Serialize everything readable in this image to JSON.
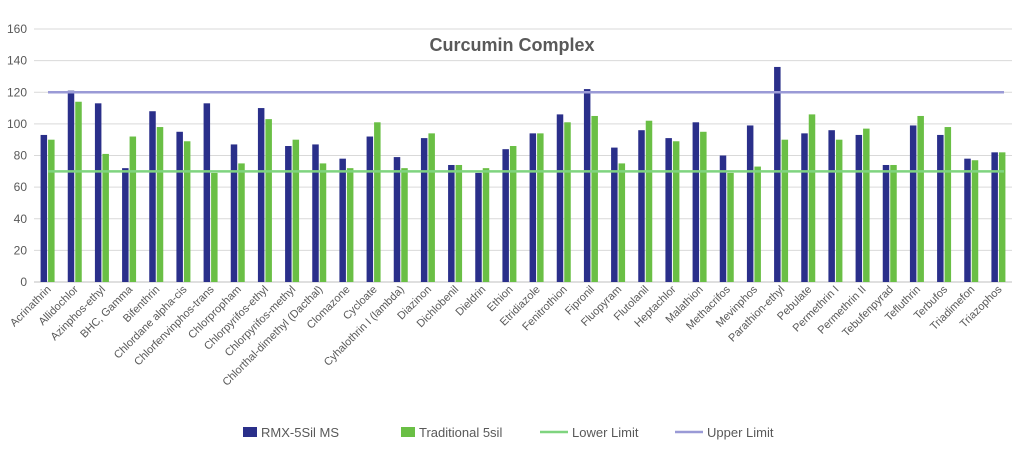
{
  "chart_data": {
    "type": "bar",
    "title": "Curcumin Complex",
    "xlabel": "",
    "ylabel": "",
    "ylim": [
      0,
      160
    ],
    "yticks": [
      0,
      20,
      40,
      60,
      80,
      100,
      120,
      140,
      160
    ],
    "grid": true,
    "legend_position": "bottom",
    "categories": [
      "Acrinathrin",
      "Allidochlor",
      "Azinphos-ethyl",
      "BHC, Gamma",
      "Bifenthrin",
      "Chlordane alpha-cis",
      "Chlorfenvinphos-trans",
      "Chlorpropham",
      "Chlorpyrifos-ethyl",
      "Chlorpyrifos-methyl",
      "Chlorthal-dimethyl (Dacthal)",
      "Clomazone",
      "Cycloate",
      "Cyhalothrin I (lambda)",
      "Diazinon",
      "Dichlobenil",
      "Dieldrin",
      "Ethion",
      "Etridiazole",
      "Fenitrothion",
      "Fipronil",
      "Fluopyram",
      "Flutolanil",
      "Heptachlor",
      "Malathion",
      "Methacrifos",
      "Mevinphos",
      "Parathion-ethyl",
      "Pebulate",
      "Permethrin I",
      "Permethrin II",
      "Tebufenpyrad",
      "Tefluthrin",
      "Terbufos",
      "Triadimefon",
      "Triazophos"
    ],
    "series": [
      {
        "name": "RMX-5Sil MS",
        "color": "#2a2f8a",
        "values": [
          93,
          121,
          113,
          72,
          108,
          95,
          113,
          87,
          110,
          86,
          87,
          78,
          92,
          79,
          91,
          74,
          69,
          84,
          94,
          106,
          122,
          85,
          96,
          91,
          101,
          80,
          99,
          136,
          94,
          96,
          93,
          74,
          99,
          93,
          78,
          82
        ]
      },
      {
        "name": "Traditional 5sil",
        "color": "#6abf45",
        "values": [
          90,
          114,
          81,
          92,
          98,
          89,
          69,
          75,
          103,
          90,
          75,
          72,
          101,
          72,
          94,
          74,
          72,
          86,
          94,
          101,
          105,
          75,
          102,
          89,
          95,
          69,
          73,
          90,
          106,
          90,
          97,
          74,
          105,
          98,
          77,
          82
        ]
      }
    ],
    "reference_lines": [
      {
        "name": "Lower Limit",
        "value": 70,
        "color": "#7fd47f"
      },
      {
        "name": "Upper Limit",
        "value": 120,
        "color": "#9a9ad6"
      }
    ]
  }
}
